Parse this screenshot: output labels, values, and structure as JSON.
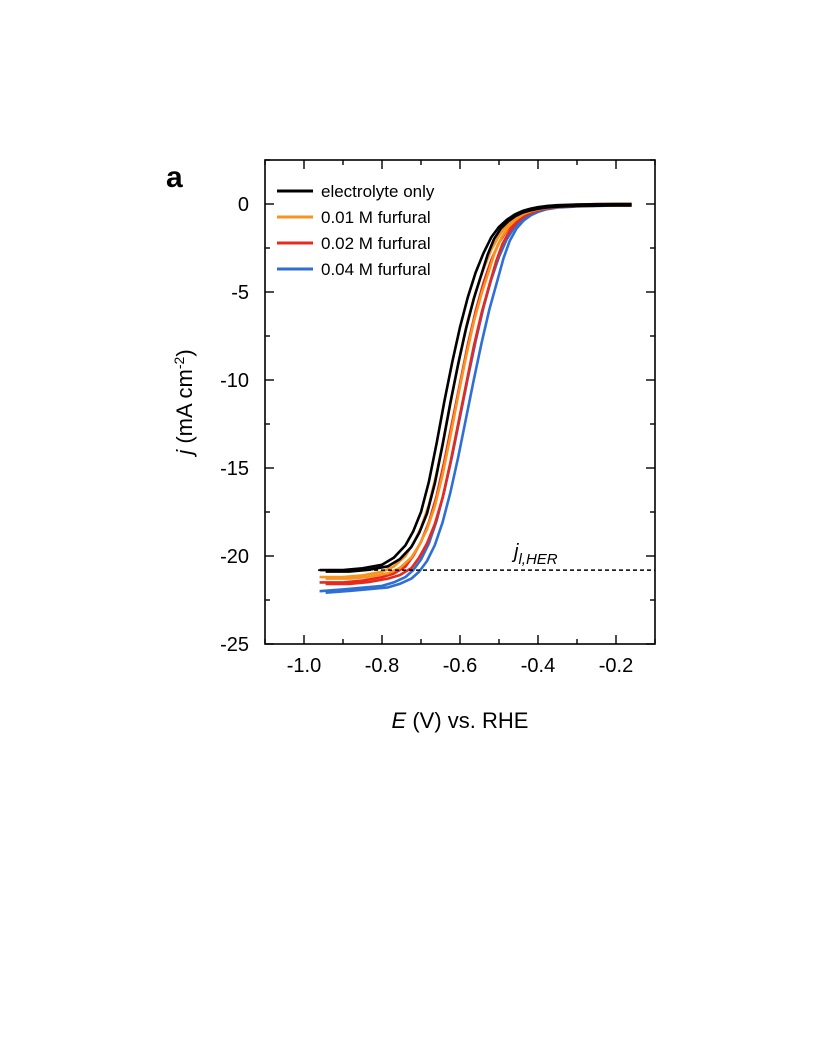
{
  "panel_label": "a",
  "chart_data": {
    "type": "line",
    "xlabel": {
      "italic": "E",
      "rest": " (V) vs. RHE"
    },
    "ylabel": {
      "italic": "j",
      "rest_pre": " (mA cm",
      "sup": "-2",
      "rest_post": ")"
    },
    "xlim": [
      -1.1,
      -0.1
    ],
    "ylim": [
      -25,
      2.5
    ],
    "x_ticks": [
      -1.0,
      -0.8,
      -0.6,
      -0.4,
      -0.2
    ],
    "x_tick_labels": [
      "-1.0",
      "-0.8",
      "-0.6",
      "-0.4",
      "-0.2"
    ],
    "y_ticks": [
      0,
      -5,
      -10,
      -15,
      -20,
      -25
    ],
    "y_tick_labels": [
      "0",
      "-5",
      "-10",
      "-15",
      "-20",
      "-25"
    ],
    "grid": false,
    "legend_position": "top-left",
    "hline": {
      "y": -20.8,
      "style": "dashed",
      "label_main": "j",
      "label_sub": "l,HER"
    },
    "series": [
      {
        "name": "electrolyte only",
        "color": "#000000",
        "x": [
          -0.96,
          -0.9,
          -0.85,
          -0.8,
          -0.77,
          -0.74,
          -0.72,
          -0.7,
          -0.68,
          -0.66,
          -0.64,
          -0.62,
          -0.6,
          -0.58,
          -0.56,
          -0.54,
          -0.52,
          -0.5,
          -0.48,
          -0.46,
          -0.44,
          -0.42,
          -0.4,
          -0.38,
          -0.35,
          -0.3,
          -0.25,
          -0.2,
          -0.16
        ],
        "y": [
          -20.8,
          -20.8,
          -20.7,
          -20.5,
          -20.1,
          -19.4,
          -18.6,
          -17.5,
          -15.8,
          -13.6,
          -11.2,
          -9.0,
          -7.0,
          -5.3,
          -3.9,
          -2.8,
          -1.9,
          -1.3,
          -0.9,
          -0.6,
          -0.4,
          -0.27,
          -0.18,
          -0.12,
          -0.07,
          -0.03,
          -0.01,
          0.0,
          0.0
        ]
      },
      {
        "name": "0.01 M furfural",
        "color": "#f7931e",
        "x": [
          -0.96,
          -0.9,
          -0.85,
          -0.8,
          -0.77,
          -0.74,
          -0.72,
          -0.7,
          -0.68,
          -0.66,
          -0.64,
          -0.62,
          -0.6,
          -0.58,
          -0.56,
          -0.54,
          -0.52,
          -0.5,
          -0.48,
          -0.46,
          -0.44,
          -0.42,
          -0.4,
          -0.38,
          -0.35,
          -0.3,
          -0.25,
          -0.2,
          -0.16
        ],
        "y": [
          -21.2,
          -21.2,
          -21.1,
          -20.9,
          -20.6,
          -20.0,
          -19.3,
          -18.4,
          -17.1,
          -15.3,
          -13.1,
          -10.8,
          -8.6,
          -6.6,
          -5.0,
          -3.7,
          -2.6,
          -1.8,
          -1.2,
          -0.8,
          -0.5,
          -0.33,
          -0.22,
          -0.14,
          -0.08,
          -0.03,
          -0.01,
          0.0,
          0.0
        ]
      },
      {
        "name": "0.02 M furfural",
        "color": "#e8291c",
        "x": [
          -0.96,
          -0.9,
          -0.85,
          -0.8,
          -0.77,
          -0.74,
          -0.72,
          -0.7,
          -0.68,
          -0.66,
          -0.64,
          -0.62,
          -0.6,
          -0.58,
          -0.56,
          -0.54,
          -0.52,
          -0.5,
          -0.48,
          -0.46,
          -0.44,
          -0.42,
          -0.4,
          -0.38,
          -0.35,
          -0.3,
          -0.25,
          -0.2,
          -0.16
        ],
        "y": [
          -21.5,
          -21.5,
          -21.4,
          -21.2,
          -21.0,
          -20.6,
          -20.0,
          -19.2,
          -18.1,
          -16.6,
          -14.6,
          -12.4,
          -10.2,
          -8.0,
          -6.1,
          -4.5,
          -3.2,
          -2.2,
          -1.5,
          -1.0,
          -0.65,
          -0.42,
          -0.27,
          -0.17,
          -0.09,
          -0.04,
          -0.01,
          0.0,
          0.0
        ]
      },
      {
        "name": "0.04 M furfural",
        "color": "#2e6fd6",
        "x": [
          -0.96,
          -0.9,
          -0.85,
          -0.8,
          -0.77,
          -0.74,
          -0.72,
          -0.7,
          -0.68,
          -0.66,
          -0.64,
          -0.62,
          -0.6,
          -0.58,
          -0.56,
          -0.54,
          -0.52,
          -0.5,
          -0.48,
          -0.46,
          -0.44,
          -0.42,
          -0.4,
          -0.38,
          -0.35,
          -0.3,
          -0.25,
          -0.2,
          -0.16
        ],
        "y": [
          -22.0,
          -21.9,
          -21.8,
          -21.7,
          -21.5,
          -21.2,
          -20.8,
          -20.2,
          -19.3,
          -18.0,
          -16.3,
          -14.3,
          -12.1,
          -9.9,
          -7.8,
          -5.9,
          -4.3,
          -3.0,
          -2.0,
          -1.3,
          -0.85,
          -0.55,
          -0.35,
          -0.22,
          -0.12,
          -0.05,
          -0.02,
          0.0,
          0.0
        ]
      }
    ]
  }
}
